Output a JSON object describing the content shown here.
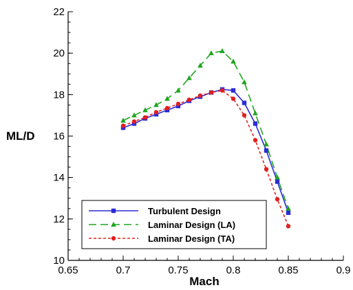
{
  "chart_data": {
    "type": "line",
    "xlabel": "Mach",
    "ylabel": "ML/D",
    "xlim": [
      0.65,
      0.9
    ],
    "ylim": [
      10,
      22
    ],
    "x_ticks": [
      "0.65",
      "0.7",
      "0.75",
      "0.8",
      "0.85",
      "0.9"
    ],
    "y_ticks": [
      "10",
      "12",
      "14",
      "16",
      "18",
      "20",
      "22"
    ],
    "x_tick_values": [
      0.65,
      0.7,
      0.75,
      0.8,
      0.85,
      0.9
    ],
    "y_tick_values": [
      10,
      12,
      14,
      16,
      18,
      20,
      22
    ],
    "grid": false,
    "legend_position": "bottom-left",
    "x": [
      0.7,
      0.71,
      0.72,
      0.73,
      0.74,
      0.75,
      0.76,
      0.77,
      0.78,
      0.79,
      0.8,
      0.81,
      0.82,
      0.83,
      0.84,
      0.85
    ],
    "series": [
      {
        "name": "Turbulent Design",
        "color": "#2b2bd6",
        "dash": "solid",
        "marker": "square",
        "values": [
          16.4,
          16.6,
          16.85,
          17.05,
          17.25,
          17.45,
          17.7,
          17.9,
          18.1,
          18.25,
          18.2,
          17.6,
          16.6,
          15.3,
          13.8,
          12.3
        ]
      },
      {
        "name": "Laminar Design (LA)",
        "color": "#1fa51f",
        "dash": "long-dash",
        "marker": "triangle",
        "values": [
          16.75,
          17.0,
          17.25,
          17.5,
          17.8,
          18.2,
          18.8,
          19.4,
          20.0,
          20.1,
          19.6,
          18.6,
          17.1,
          15.6,
          14.0,
          12.5
        ]
      },
      {
        "name": "Laminar Design (TA)",
        "color": "#e02020",
        "dash": "dotted",
        "marker": "circle",
        "values": [
          16.5,
          16.7,
          16.9,
          17.15,
          17.35,
          17.55,
          17.75,
          17.95,
          18.1,
          18.2,
          17.8,
          17.0,
          15.8,
          14.4,
          12.95,
          11.65
        ]
      }
    ]
  }
}
